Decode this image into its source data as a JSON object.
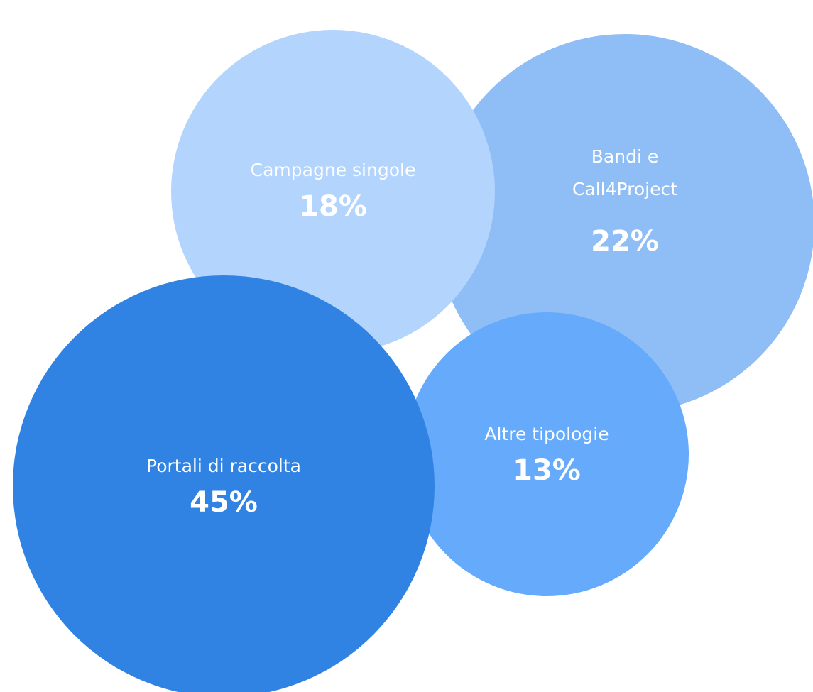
{
  "chart_data": {
    "type": "bubble",
    "categories": [
      "Campagne singole",
      "Bandi e Call4Project",
      "Portali di raccolta",
      "Altre tipologie"
    ],
    "values": [
      18,
      22,
      45,
      13
    ],
    "value_labels": [
      "18%",
      "22%",
      "45%",
      "13%"
    ],
    "colors": [
      "#b3d4fd",
      "#8fbdf5",
      "#3183e3",
      "#66aafc"
    ]
  }
}
